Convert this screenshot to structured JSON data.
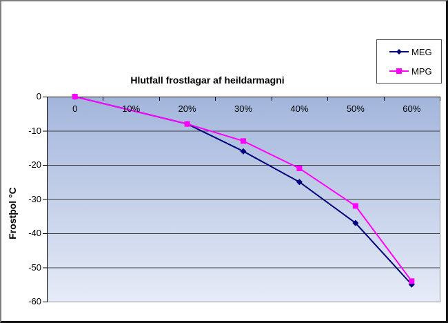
{
  "frame": {
    "background": "#ffffff",
    "border_top_left_color": "#7f7f7f",
    "border_bottom_right_color": "#141414"
  },
  "chart_data": {
    "type": "line",
    "title": "Hlutfall frostlagar af heildarmagni",
    "ylabel": "Frostþol °C",
    "xlabel": "",
    "categories": [
      "0",
      "10%",
      "20%",
      "30%",
      "40%",
      "50%",
      "60%"
    ],
    "series": [
      {
        "name": "MEG",
        "color": "#00007f",
        "marker": "diamond",
        "values": [
          0,
          null,
          -8,
          -16,
          -25,
          -37,
          -55
        ]
      },
      {
        "name": "MPG",
        "color": "#ff00ff",
        "marker": "square",
        "values": [
          0,
          null,
          -8,
          -13,
          -21,
          -32,
          -54
        ]
      }
    ],
    "ylim": [
      -60,
      0
    ],
    "ytick_step": 10,
    "ytick_labels": [
      "0",
      "-10",
      "-20",
      "-30",
      "-40",
      "-50",
      "-60"
    ],
    "grid": true,
    "legend_position": "top-right",
    "colors": {
      "plot_gradient_top": "#a2b5db",
      "plot_gradient_bottom": "#e6ebf7",
      "gridline": "#3c3c3c",
      "axis": "#000000",
      "plot_edge": "#8c93a0",
      "text": "#000000",
      "legend_border": "#4d4d4d",
      "legend_bg": "#ffffff"
    }
  }
}
